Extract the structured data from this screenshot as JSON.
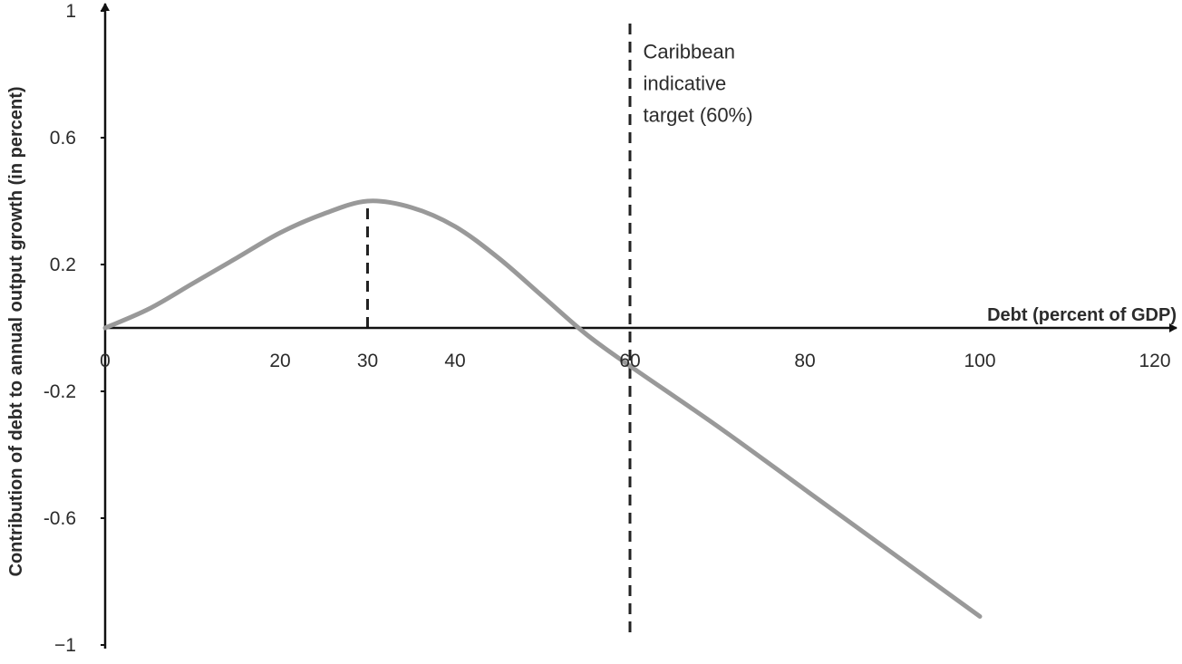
{
  "chart_data": {
    "type": "line",
    "xlabel": "Debt (percent of GDP)",
    "ylabel": "Contribution of debt to annual output growth (in percent)",
    "xlim": [
      0,
      120
    ],
    "ylim": [
      -1,
      1
    ],
    "x_ticks": [
      0,
      20,
      30,
      40,
      60,
      80,
      100,
      120
    ],
    "x_tick_labels": [
      "0",
      "20",
      "30",
      "40",
      "60",
      "80",
      "100",
      "120"
    ],
    "y_ticks": [
      1,
      0.6,
      0.2,
      -0.2,
      -0.6,
      -1
    ],
    "y_tick_labels": [
      "1",
      "0.6",
      "0.2",
      "-0.2",
      "-0.6",
      "−1"
    ],
    "grid": false,
    "legend": "none",
    "series": [
      {
        "color": "#999999",
        "x": [
          0,
          5,
          10,
          15,
          20,
          25,
          30,
          35,
          40,
          45,
          50,
          55,
          60,
          70,
          80,
          90,
          100
        ],
        "y": [
          0.0,
          0.06,
          0.14,
          0.22,
          0.3,
          0.36,
          0.4,
          0.38,
          0.32,
          0.22,
          0.1,
          -0.02,
          -0.12,
          -0.31,
          -0.51,
          -0.71,
          -0.91
        ]
      }
    ],
    "reference_lines": [
      {
        "orientation": "vertical",
        "x": 30,
        "y_from": 0,
        "y_to": 0.4,
        "style": "dashed"
      },
      {
        "orientation": "vertical",
        "x": 60,
        "y_from": -0.96,
        "y_to": 0.98,
        "style": "dashed"
      }
    ],
    "annotations": [
      {
        "lines": [
          "Caribbean",
          "indicative",
          "target (60%)"
        ],
        "x": 61.5,
        "y": 0.85
      }
    ],
    "axis_color": "#111111"
  }
}
